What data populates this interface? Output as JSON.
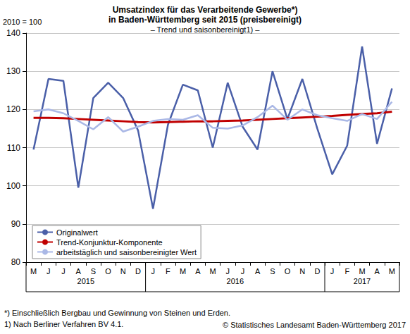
{
  "chart_data": {
    "type": "line",
    "title": "Umsatzindex für das Verarbeitende Gewerbe*)\nin Baden-Württemberg seit 2015 (preisbereinigt)",
    "subtitle": "– Trend und saisonbereinigt1) –",
    "y_label": "2010 = 100",
    "categories": [
      "M",
      "J",
      "J",
      "A",
      "S",
      "O",
      "N",
      "D",
      "J",
      "F",
      "M",
      "A",
      "M",
      "J",
      "J",
      "A",
      "S",
      "O",
      "N",
      "D",
      "J",
      "F",
      "M",
      "A",
      "M"
    ],
    "x_groups": [
      {
        "label": "2015",
        "size": 8
      },
      {
        "label": "2016",
        "size": 12
      },
      {
        "label": "2017",
        "size": 5
      }
    ],
    "series": [
      {
        "name": "Originalwert",
        "color": "#4a5fa8",
        "values": [
          109.5,
          128,
          127.5,
          99.5,
          123,
          127,
          123,
          114.5,
          94,
          116,
          126.5,
          125,
          110,
          127,
          115.5,
          109.5,
          130,
          117.5,
          128,
          115,
          103,
          110.5,
          136.5,
          111,
          125.5
        ]
      },
      {
        "name": "Trend-Konjunktur-Komponente",
        "color": "#c00000",
        "values": [
          117.8,
          117.8,
          117.7,
          117.5,
          117.3,
          117.1,
          116.9,
          116.7,
          116.6,
          116.7,
          116.8,
          116.9,
          116.9,
          117.0,
          117.1,
          117.3,
          117.5,
          117.7,
          117.9,
          118.1,
          118.3,
          118.6,
          118.8,
          119.0,
          119.4
        ]
      },
      {
        "name": "arbeitstäglich und saisonbereinigter Wert",
        "color": "#aab8e6",
        "values": [
          119.5,
          120,
          119,
          117,
          114.8,
          118,
          114.2,
          115.5,
          117,
          117.5,
          117.3,
          118.5,
          115.2,
          115,
          115.8,
          118,
          121,
          117.3,
          120,
          118.5,
          117.7,
          117,
          118.8,
          117.5,
          122
        ]
      }
    ],
    "ylim": [
      80,
      140
    ],
    "yticks": [
      80,
      90,
      100,
      110,
      120,
      130,
      140
    ],
    "grid": true,
    "legend": "lower left",
    "footnotes": [
      "*) Einschließlich Bergbau und Gewinnung von Steinen und Erden.",
      "1) Nach Berliner Verfahren BV 4.1."
    ],
    "source": "© Statistisches Landesamt Baden-Württemberg 2017"
  }
}
